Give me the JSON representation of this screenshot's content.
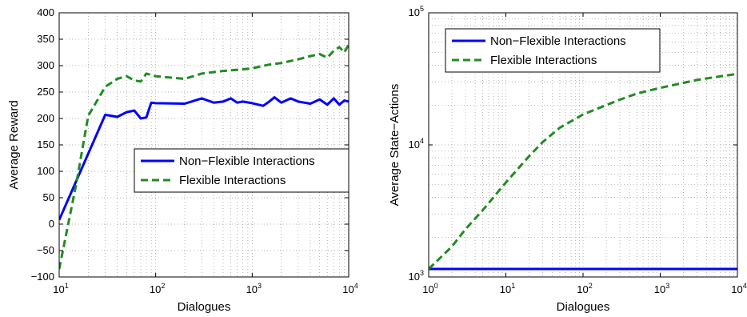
{
  "colors": {
    "non_flexible": "#0000ff",
    "flexible": "#228b22",
    "grid": "#9a9a9a"
  },
  "chart_data": [
    {
      "type": "line",
      "xlabel": "Dialogues",
      "ylabel": "Average Reward",
      "xscale": "log",
      "xlim": [
        10,
        10000
      ],
      "ylim": [
        -100,
        400
      ],
      "grid": true,
      "legend_position": "center-right",
      "x_ticks": [
        {
          "base": "10",
          "exp": "1"
        },
        {
          "base": "10",
          "exp": "2"
        },
        {
          "base": "10",
          "exp": "3"
        },
        {
          "base": "10",
          "exp": "4"
        }
      ],
      "y_ticks": [
        "400",
        "350",
        "300",
        "250",
        "200",
        "150",
        "100",
        "50",
        "0",
        "−50",
        "−100"
      ],
      "series": [
        {
          "name": "Non−Flexible Interactions",
          "style": "solid",
          "x": [
            10,
            30,
            40,
            50,
            60,
            70,
            80,
            90,
            100,
            200,
            300,
            400,
            500,
            600,
            700,
            800,
            1000,
            1300,
            1500,
            1700,
            2000,
            2500,
            3000,
            4000,
            5000,
            6000,
            7000,
            8000,
            9000,
            10000
          ],
          "y": [
            8,
            207,
            203,
            212,
            215,
            200,
            202,
            230,
            229,
            228,
            238,
            230,
            232,
            238,
            230,
            232,
            229,
            224,
            232,
            240,
            230,
            238,
            232,
            228,
            236,
            226,
            238,
            226,
            234,
            232
          ]
        },
        {
          "name": "Flexible Interactions",
          "style": "dashed",
          "x": [
            10,
            15,
            20,
            30,
            40,
            50,
            60,
            70,
            80,
            100,
            200,
            300,
            500,
            800,
            1000,
            1500,
            2000,
            3000,
            4000,
            5000,
            6000,
            7000,
            8000,
            9000,
            10000
          ],
          "y": [
            -85,
            75,
            205,
            260,
            275,
            280,
            272,
            270,
            285,
            280,
            275,
            285,
            290,
            293,
            295,
            302,
            305,
            312,
            318,
            322,
            315,
            328,
            335,
            325,
            340
          ]
        }
      ]
    },
    {
      "type": "line",
      "xlabel": "Dialogues",
      "ylabel": "Average State−Actions",
      "xscale": "log",
      "yscale": "log",
      "xlim": [
        1,
        10000
      ],
      "ylim": [
        1000,
        100000
      ],
      "grid": true,
      "legend_position": "top-left",
      "x_ticks": [
        {
          "base": "10",
          "exp": "0"
        },
        {
          "base": "10",
          "exp": "1"
        },
        {
          "base": "10",
          "exp": "2"
        },
        {
          "base": "10",
          "exp": "3"
        },
        {
          "base": "10",
          "exp": "4"
        }
      ],
      "y_ticks": [
        {
          "base": "10",
          "exp": "5"
        },
        {
          "base": "10",
          "exp": "4"
        },
        {
          "base": "10",
          "exp": "3"
        }
      ],
      "series": [
        {
          "name": "Non−Flexible Interactions",
          "style": "solid",
          "x": [
            1,
            10000
          ],
          "y": [
            1150,
            1150
          ]
        },
        {
          "name": "Flexible Interactions",
          "style": "dashed",
          "x": [
            1,
            2,
            3,
            5,
            10,
            20,
            30,
            50,
            100,
            200,
            300,
            500,
            1000,
            2000,
            3000,
            5000,
            10000
          ],
          "y": [
            1150,
            1700,
            2300,
            3200,
            5200,
            8200,
            10500,
            13500,
            17000,
            20000,
            22000,
            24500,
            27000,
            29500,
            31000,
            32500,
            34500
          ]
        }
      ]
    }
  ]
}
